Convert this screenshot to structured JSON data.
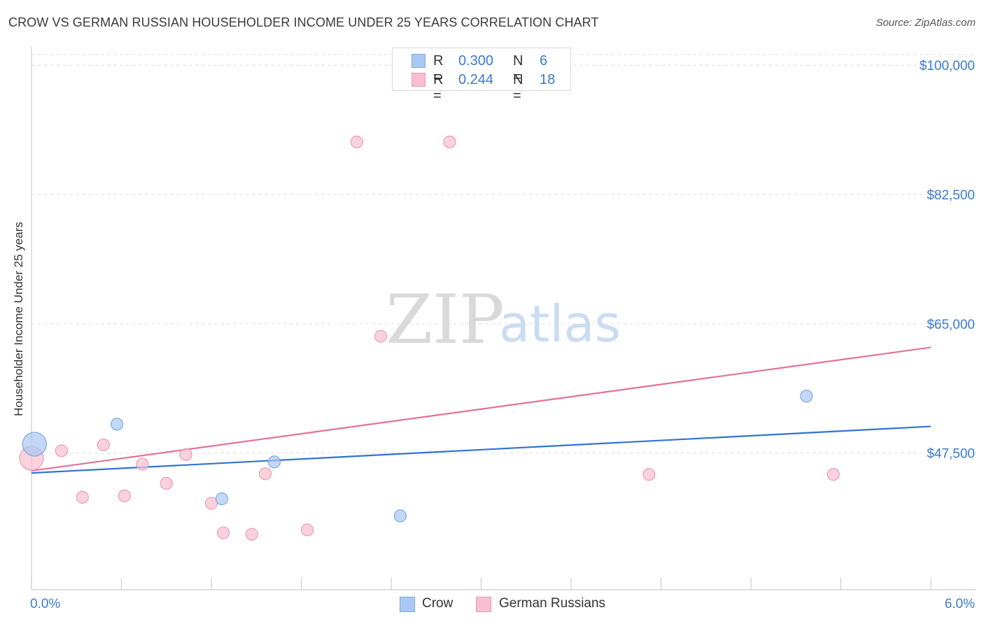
{
  "title": "CROW VS GERMAN RUSSIAN HOUSEHOLDER INCOME UNDER 25 YEARS CORRELATION CHART",
  "source": "Source: ZipAtlas.com",
  "watermark": {
    "zip": "ZIP",
    "atlas": "atlas"
  },
  "colors": {
    "crow_fill": "#a9c8f3",
    "crow_stroke": "#7aa7e0",
    "crow_line": "#2f74d0",
    "gr_fill": "#f7bfd0",
    "gr_stroke": "#ee9ab4",
    "gr_line": "#e2719a",
    "tick_label": "#3a7bd5",
    "grid": "#dddddd"
  },
  "legend": {
    "rows": [
      {
        "r_label": "R =",
        "r_value": "0.300",
        "n_label": "N =",
        "n_value": "6"
      },
      {
        "r_label": "R =",
        "r_value": "0.244",
        "n_label": "N =",
        "n_value": "18"
      }
    ]
  },
  "bottom_legend": {
    "crow": "Crow",
    "german_russians": "German Russians"
  },
  "chart_data": {
    "type": "scatter",
    "title": "CROW VS GERMAN RUSSIAN HOUSEHOLDER INCOME UNDER 25 YEARS CORRELATION CHART",
    "xlabel": "",
    "ylabel": "Householder Income Under 25 years",
    "xlim": [
      0,
      6
    ],
    "ylim": [
      29000,
      102000
    ],
    "x_tick_labels": [
      "0.0%",
      "6.0%"
    ],
    "y_ticks": [
      100000,
      82500,
      65000,
      47500
    ],
    "y_tick_labels": [
      "$100,000",
      "$82,500",
      "$65,000",
      "$47,500"
    ],
    "grid": true,
    "legend_position": "top-center",
    "series": [
      {
        "name": "Crow",
        "points": [
          {
            "x": 0.02,
            "y": 48700,
            "big": true
          },
          {
            "x": 0.57,
            "y": 51400
          },
          {
            "x": 1.27,
            "y": 41300
          },
          {
            "x": 1.62,
            "y": 46300
          },
          {
            "x": 2.46,
            "y": 39000
          },
          {
            "x": 5.17,
            "y": 55200
          }
        ],
        "trend": {
          "x0": 0,
          "y0": 44800,
          "x1": 6,
          "y1": 51100
        }
      },
      {
        "name": "German Russians",
        "points": [
          {
            "x": 0.0,
            "y": 46800,
            "big": true
          },
          {
            "x": 0.2,
            "y": 47800
          },
          {
            "x": 0.34,
            "y": 41500
          },
          {
            "x": 0.48,
            "y": 48600
          },
          {
            "x": 0.62,
            "y": 41700
          },
          {
            "x": 0.74,
            "y": 46000
          },
          {
            "x": 0.9,
            "y": 43400
          },
          {
            "x": 1.03,
            "y": 47300
          },
          {
            "x": 1.2,
            "y": 40700
          },
          {
            "x": 1.28,
            "y": 36700
          },
          {
            "x": 1.47,
            "y": 36500
          },
          {
            "x": 1.56,
            "y": 44700
          },
          {
            "x": 1.84,
            "y": 37100
          },
          {
            "x": 2.17,
            "y": 89600
          },
          {
            "x": 2.33,
            "y": 63300
          },
          {
            "x": 2.79,
            "y": 89600
          },
          {
            "x": 4.12,
            "y": 44600
          },
          {
            "x": 5.35,
            "y": 44600
          }
        ],
        "trend": {
          "x0": 0,
          "y0": 45100,
          "x1": 6,
          "y1": 61800
        }
      }
    ]
  }
}
